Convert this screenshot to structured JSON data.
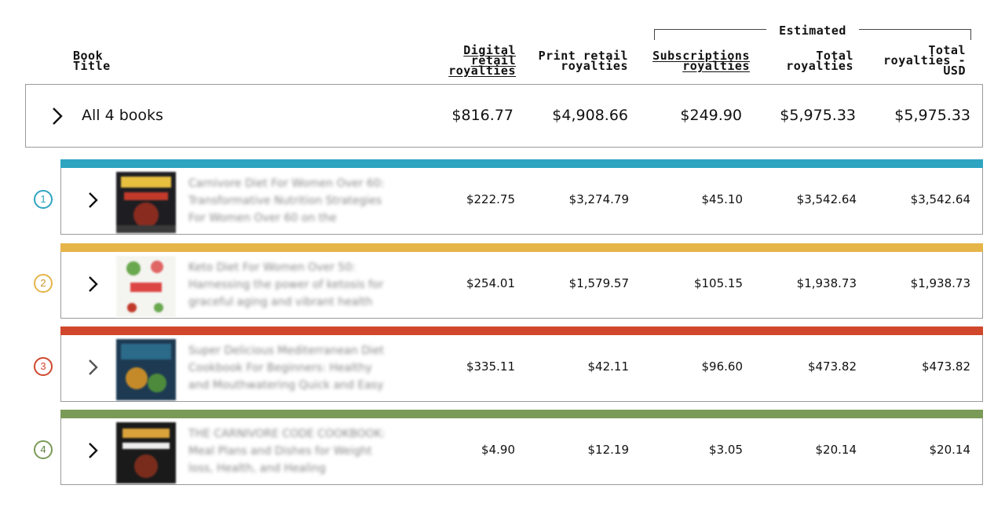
{
  "header": {
    "book_title": [
      "Book",
      "Title"
    ],
    "digital": [
      "Digital",
      "retail",
      "royalties"
    ],
    "print": [
      "Print retail",
      "royalties"
    ],
    "subs": [
      "Subscriptions",
      "royalties"
    ],
    "total": [
      "Total",
      "royalties"
    ],
    "total_usd": [
      "Total",
      "royalties -",
      "USD"
    ],
    "estimated": "Estimated"
  },
  "summary": {
    "label": "All 4 books",
    "digital": "$816.77",
    "print": "$4,908.66",
    "subs": "$249.90",
    "total": "$5,975.33",
    "total_usd": "$5,975.33"
  },
  "books": [
    {
      "number": "1",
      "color": "#2ea4c0",
      "title": "Carnivore Diet For Women Over 60: Transformative Nutrition Strategies For Women Over 60 on the",
      "digital": "$222.75",
      "print": "$3,274.79",
      "subs": "$45.10",
      "total": "$3,542.64",
      "total_usd": "$3,542.64"
    },
    {
      "number": "2",
      "color": "#e5b54a",
      "title": "Keto Diet For Women Over 50: Harnessing the power of ketosis for graceful aging and vibrant health",
      "digital": "$254.01",
      "print": "$1,579.57",
      "subs": "$105.15",
      "total": "$1,938.73",
      "total_usd": "$1,938.73"
    },
    {
      "number": "3",
      "color": "#d0472b",
      "title": "Super Delicious Mediterranean Diet Cookbook For Beginners: Healthy and Mouthwatering Quick and Easy",
      "digital": "$335.11",
      "print": "$42.11",
      "subs": "$96.60",
      "total": "$473.82",
      "total_usd": "$473.82"
    },
    {
      "number": "4",
      "color": "#7a9a58",
      "title": "THE CARNIVORE CODE COOKBOOK: Meal Plans and Dishes for Weight loss, Health, and Healing",
      "digital": "$4.90",
      "print": "$12.19",
      "subs": "$3.05",
      "total": "$20.14",
      "total_usd": "$20.14"
    }
  ]
}
